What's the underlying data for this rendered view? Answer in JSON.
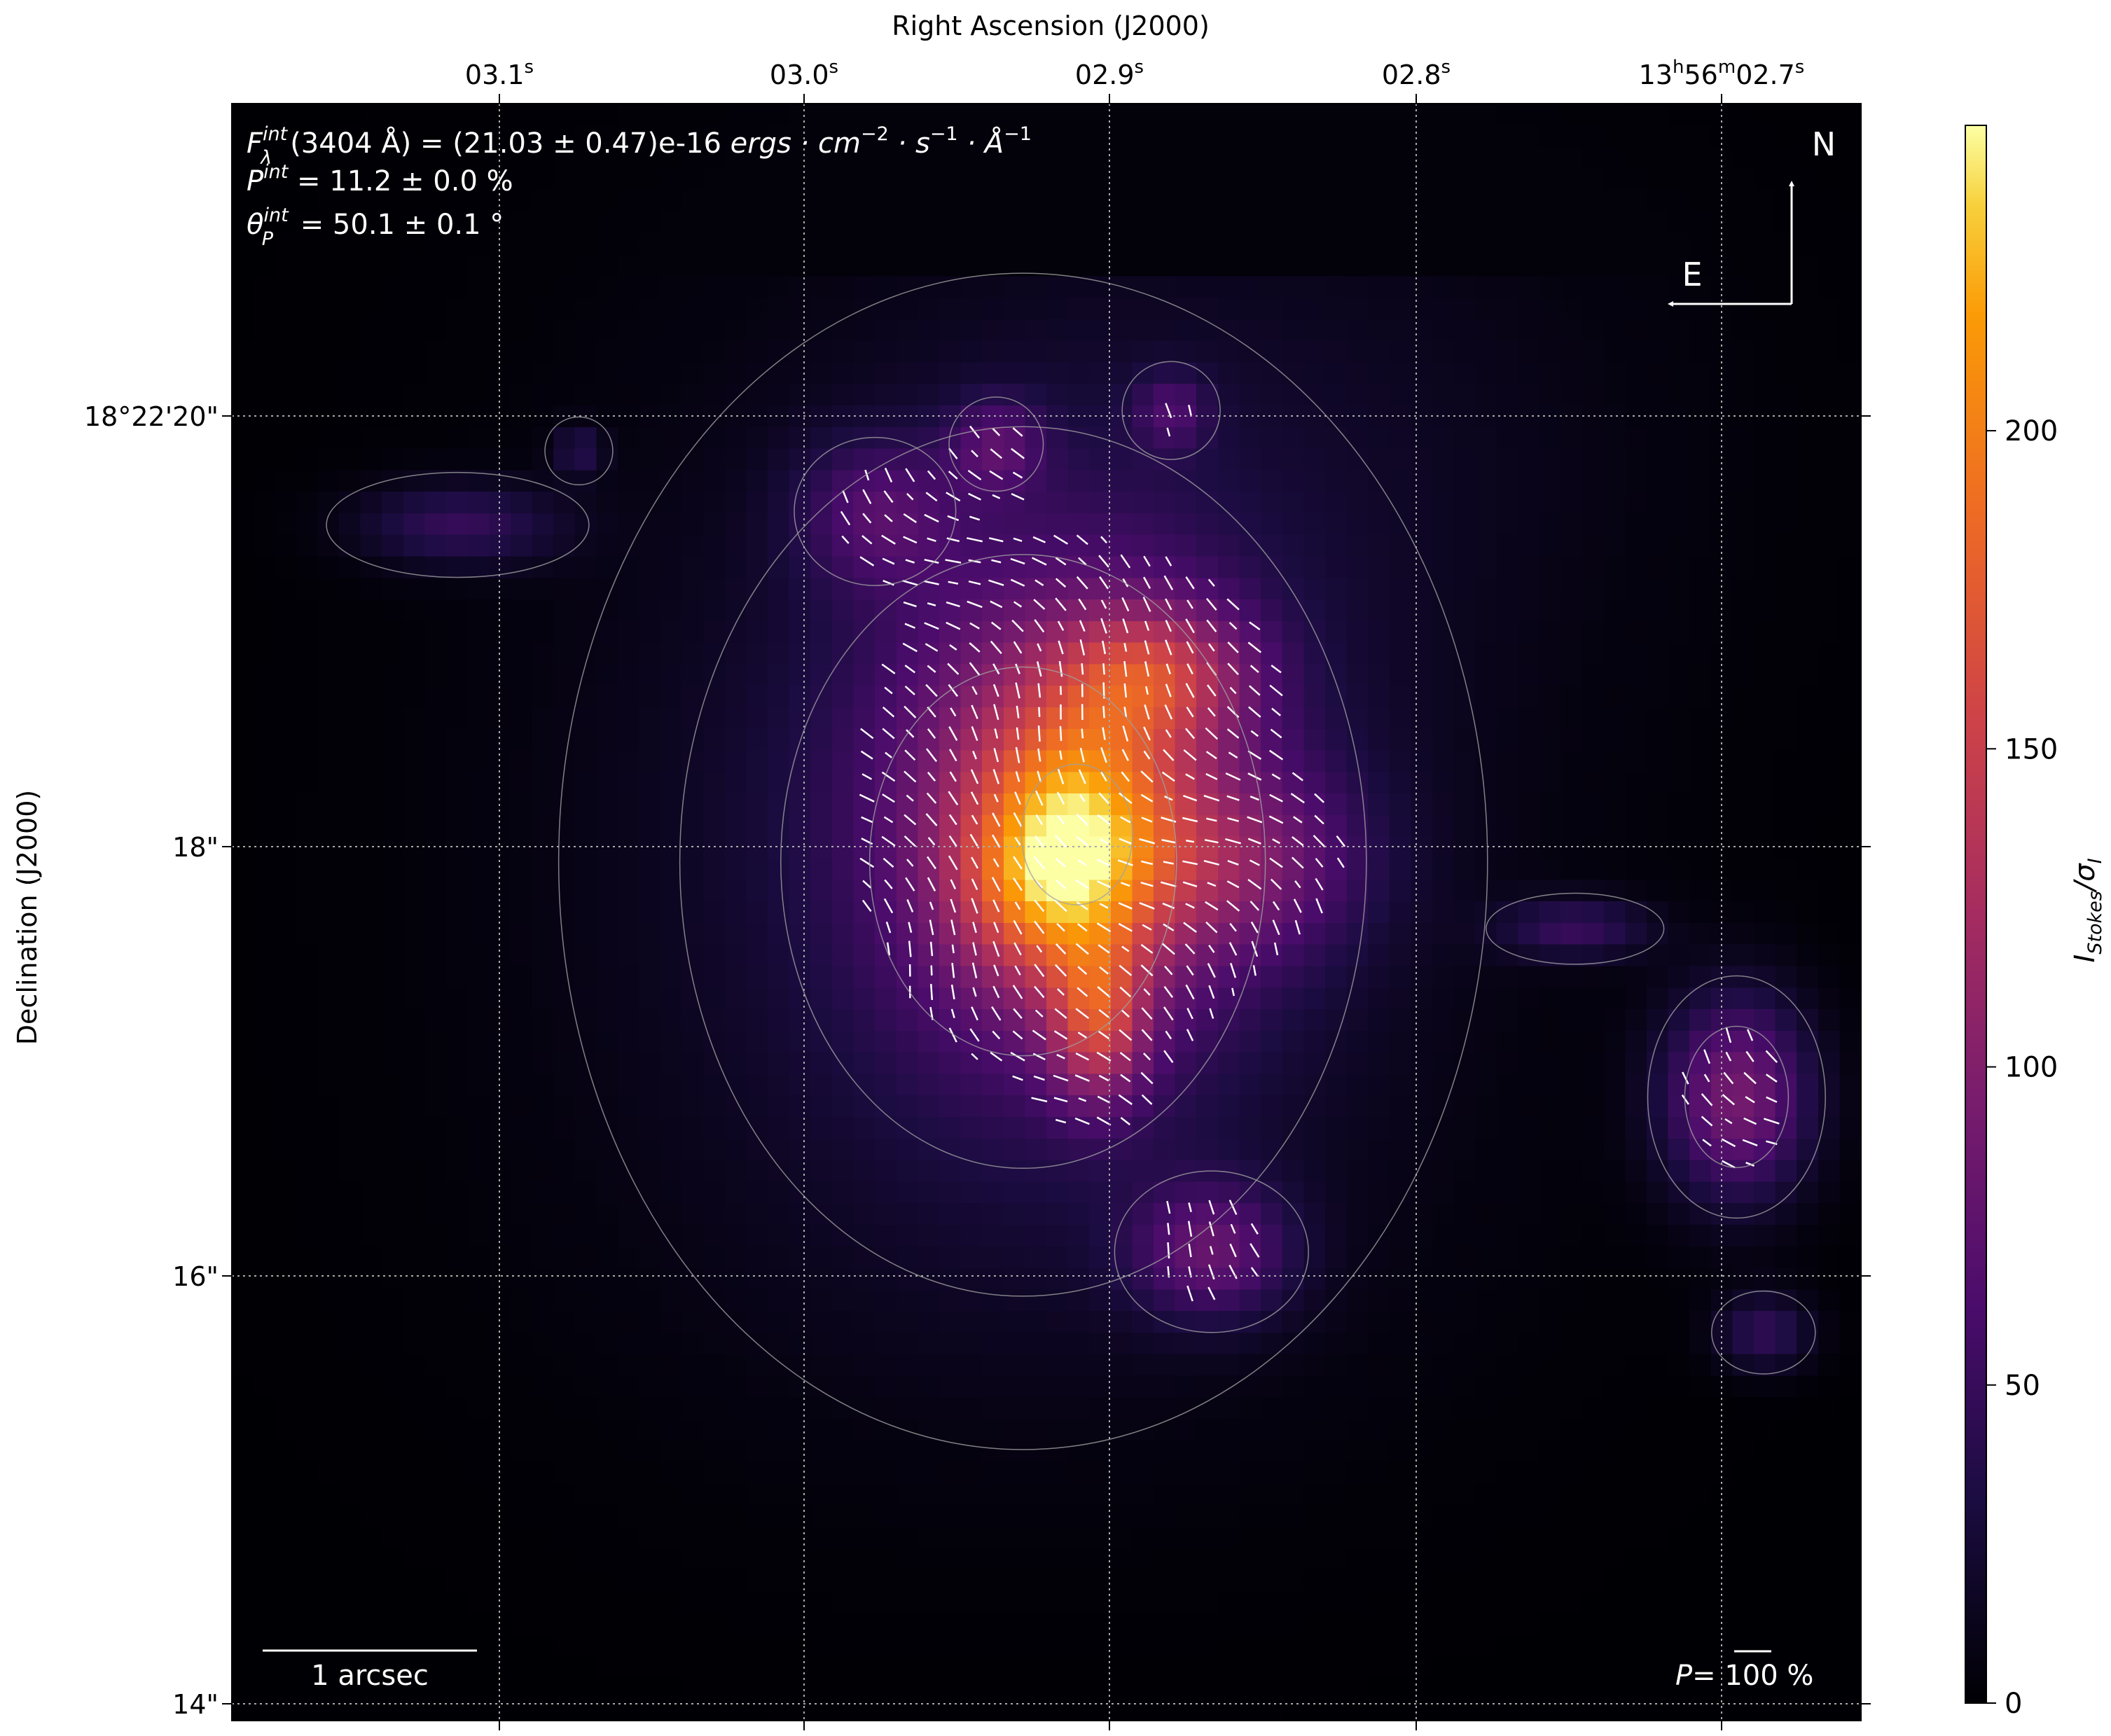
{
  "chart_data": {
    "type": "heatmap",
    "title": "",
    "xlabel": "Right Ascension (J2000)",
    "ylabel": "Declination (J2000)",
    "x_ticks": [
      {
        "main": "03.1",
        "sup": "s"
      },
      {
        "main": "03.0",
        "sup": "s"
      },
      {
        "main": "02.9",
        "sup": "s"
      },
      {
        "main": "02.8",
        "sup": "s"
      },
      {
        "main": "13",
        "sup": "h",
        "main2": "56",
        "sup2": "m",
        "main3": "02.7",
        "sup3": "s"
      }
    ],
    "y_ticks": [
      "18°22'20\"",
      "18\"",
      "16\"",
      "14\""
    ],
    "grid": true,
    "colormap": "inferno",
    "colorbar": {
      "label_main": "I",
      "label_sub": "Stokes",
      "label_sep": "/σ",
      "label_sub2": "I",
      "range": [
        0,
        248
      ],
      "ticks": [
        "0",
        "50",
        "100",
        "150",
        "200"
      ],
      "tick_values": [
        0,
        50,
        100,
        150,
        200
      ]
    },
    "annotations": {
      "flux": {
        "sym": "F",
        "sup": "int",
        "sub": "λ",
        "text": "(3404 Å) = (21.03 ± 0.47)e-16 ",
        "units": "ergs · cm",
        "u1": "−2",
        "u2": " · s",
        "u3": "−1",
        "u4": " · Å",
        "u5": "−1"
      },
      "pol": {
        "sym": "P",
        "sup": "int",
        "text": " = 11.2 ± 0.0 %"
      },
      "angle": {
        "sym": "θ",
        "sup": "int",
        "sub": "P",
        "text": " = 50.1 ± 0.1 °"
      },
      "north": "N",
      "east": "E",
      "scale_bar": "1 arcsec",
      "pol_scale": {
        "sym": "P",
        "eq": "= ",
        "value": "100 %"
      }
    },
    "vector_color": "#ffffff",
    "contour_color": "#a0a0a0"
  }
}
